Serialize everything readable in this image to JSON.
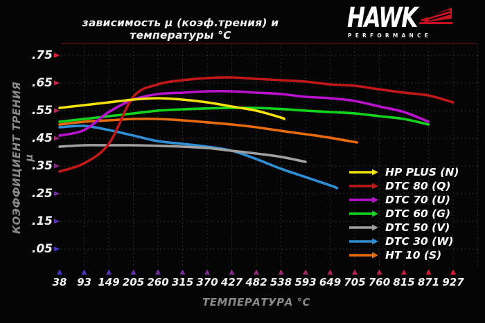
{
  "title": "зависимость μ (коэф.трения) и температуры °C",
  "logo": {
    "brand": "HAWK",
    "subtitle": "PERFORMANCE",
    "accent_color": "#c81220"
  },
  "axes": {
    "y_label": "КОЭФФИЦИЕНТ ТРЕНИЯ μ",
    "x_label": "ТЕМПЕРАТУРА °C",
    "y_ticks": [
      ".75",
      ".65",
      ".55",
      ".45",
      ".35",
      ".25",
      ".15",
      ".05"
    ],
    "x_ticks": [
      "38",
      "93",
      "149",
      "205",
      "260",
      "315",
      "370",
      "427",
      "482",
      "538",
      "593",
      "649",
      "705",
      "760",
      "815",
      "871",
      "927"
    ]
  },
  "colors": {
    "background": "#050505",
    "grid": "#3a3a3a",
    "plot_border_top": "#430a0d",
    "axis_gradient_red": "#e01c30",
    "axis_gradient_blue": "#4636c8",
    "text": "#ffffff",
    "muted_text": "#8a8a8a"
  },
  "chart_data": {
    "type": "line",
    "title": "зависимость μ (коэф.трения) и температуры °C",
    "xlabel": "ТЕМПЕРАТУРА °C",
    "ylabel": "КОЭФФИЦИЕНТ ТРЕНИЯ μ",
    "x": [
      38,
      93,
      149,
      205,
      260,
      315,
      370,
      427,
      482,
      538,
      593,
      649,
      705,
      760,
      815,
      871,
      927
    ],
    "ylim": [
      0.05,
      0.75
    ],
    "y_tick_step": 0.1,
    "grid": true,
    "legend_position": "bottom-right",
    "series": [
      {
        "name": "HP PLUS (N)",
        "color": "#f2e20a",
        "points": [
          [
            38,
            0.56
          ],
          [
            93,
            0.57
          ],
          [
            149,
            0.58
          ],
          [
            205,
            0.59
          ],
          [
            260,
            0.595
          ],
          [
            315,
            0.59
          ],
          [
            370,
            0.58
          ],
          [
            427,
            0.565
          ],
          [
            482,
            0.55
          ],
          [
            538,
            0.525
          ],
          [
            545,
            0.52
          ]
        ]
      },
      {
        "name": "DTC 80 (Q)",
        "color": "#c01818",
        "points": [
          [
            38,
            0.33
          ],
          [
            93,
            0.36
          ],
          [
            149,
            0.43
          ],
          [
            205,
            0.6
          ],
          [
            260,
            0.645
          ],
          [
            315,
            0.66
          ],
          [
            370,
            0.668
          ],
          [
            427,
            0.67
          ],
          [
            482,
            0.665
          ],
          [
            538,
            0.66
          ],
          [
            593,
            0.655
          ],
          [
            649,
            0.645
          ],
          [
            705,
            0.64
          ],
          [
            760,
            0.627
          ],
          [
            815,
            0.615
          ],
          [
            871,
            0.605
          ],
          [
            927,
            0.58
          ]
        ]
      },
      {
        "name": "DTC 70 (U)",
        "color": "#b912cc",
        "points": [
          [
            38,
            0.46
          ],
          [
            93,
            0.48
          ],
          [
            149,
            0.545
          ],
          [
            205,
            0.59
          ],
          [
            260,
            0.61
          ],
          [
            315,
            0.615
          ],
          [
            370,
            0.62
          ],
          [
            427,
            0.62
          ],
          [
            482,
            0.615
          ],
          [
            538,
            0.61
          ],
          [
            593,
            0.6
          ],
          [
            649,
            0.595
          ],
          [
            705,
            0.585
          ],
          [
            760,
            0.565
          ],
          [
            815,
            0.545
          ],
          [
            871,
            0.51
          ]
        ]
      },
      {
        "name": "DTC 60 (G)",
        "color": "#13d41d",
        "points": [
          [
            38,
            0.51
          ],
          [
            93,
            0.52
          ],
          [
            149,
            0.53
          ],
          [
            205,
            0.54
          ],
          [
            260,
            0.55
          ],
          [
            315,
            0.555
          ],
          [
            370,
            0.558
          ],
          [
            427,
            0.56
          ],
          [
            482,
            0.56
          ],
          [
            538,
            0.556
          ],
          [
            593,
            0.55
          ],
          [
            649,
            0.545
          ],
          [
            705,
            0.54
          ],
          [
            760,
            0.53
          ],
          [
            815,
            0.52
          ],
          [
            871,
            0.5
          ]
        ]
      },
      {
        "name": "DTC 50 (V)",
        "color": "#a0a0a0",
        "points": [
          [
            38,
            0.42
          ],
          [
            93,
            0.425
          ],
          [
            149,
            0.425
          ],
          [
            205,
            0.425
          ],
          [
            260,
            0.423
          ],
          [
            315,
            0.42
          ],
          [
            370,
            0.415
          ],
          [
            427,
            0.405
          ],
          [
            482,
            0.395
          ],
          [
            538,
            0.383
          ],
          [
            593,
            0.365
          ]
        ]
      },
      {
        "name": "DTC 30 (W)",
        "color": "#2e8ed6",
        "points": [
          [
            38,
            0.49
          ],
          [
            93,
            0.495
          ],
          [
            149,
            0.48
          ],
          [
            205,
            0.46
          ],
          [
            260,
            0.44
          ],
          [
            315,
            0.43
          ],
          [
            370,
            0.42
          ],
          [
            427,
            0.405
          ],
          [
            482,
            0.375
          ],
          [
            538,
            0.34
          ],
          [
            593,
            0.31
          ],
          [
            649,
            0.28
          ],
          [
            665,
            0.27
          ]
        ]
      },
      {
        "name": "HT 10 (S)",
        "color": "#e86c0c",
        "points": [
          [
            38,
            0.5
          ],
          [
            93,
            0.51
          ],
          [
            149,
            0.515
          ],
          [
            205,
            0.52
          ],
          [
            260,
            0.52
          ],
          [
            315,
            0.515
          ],
          [
            370,
            0.508
          ],
          [
            427,
            0.5
          ],
          [
            482,
            0.49
          ],
          [
            538,
            0.477
          ],
          [
            593,
            0.465
          ],
          [
            649,
            0.452
          ],
          [
            710,
            0.435
          ]
        ]
      }
    ]
  }
}
